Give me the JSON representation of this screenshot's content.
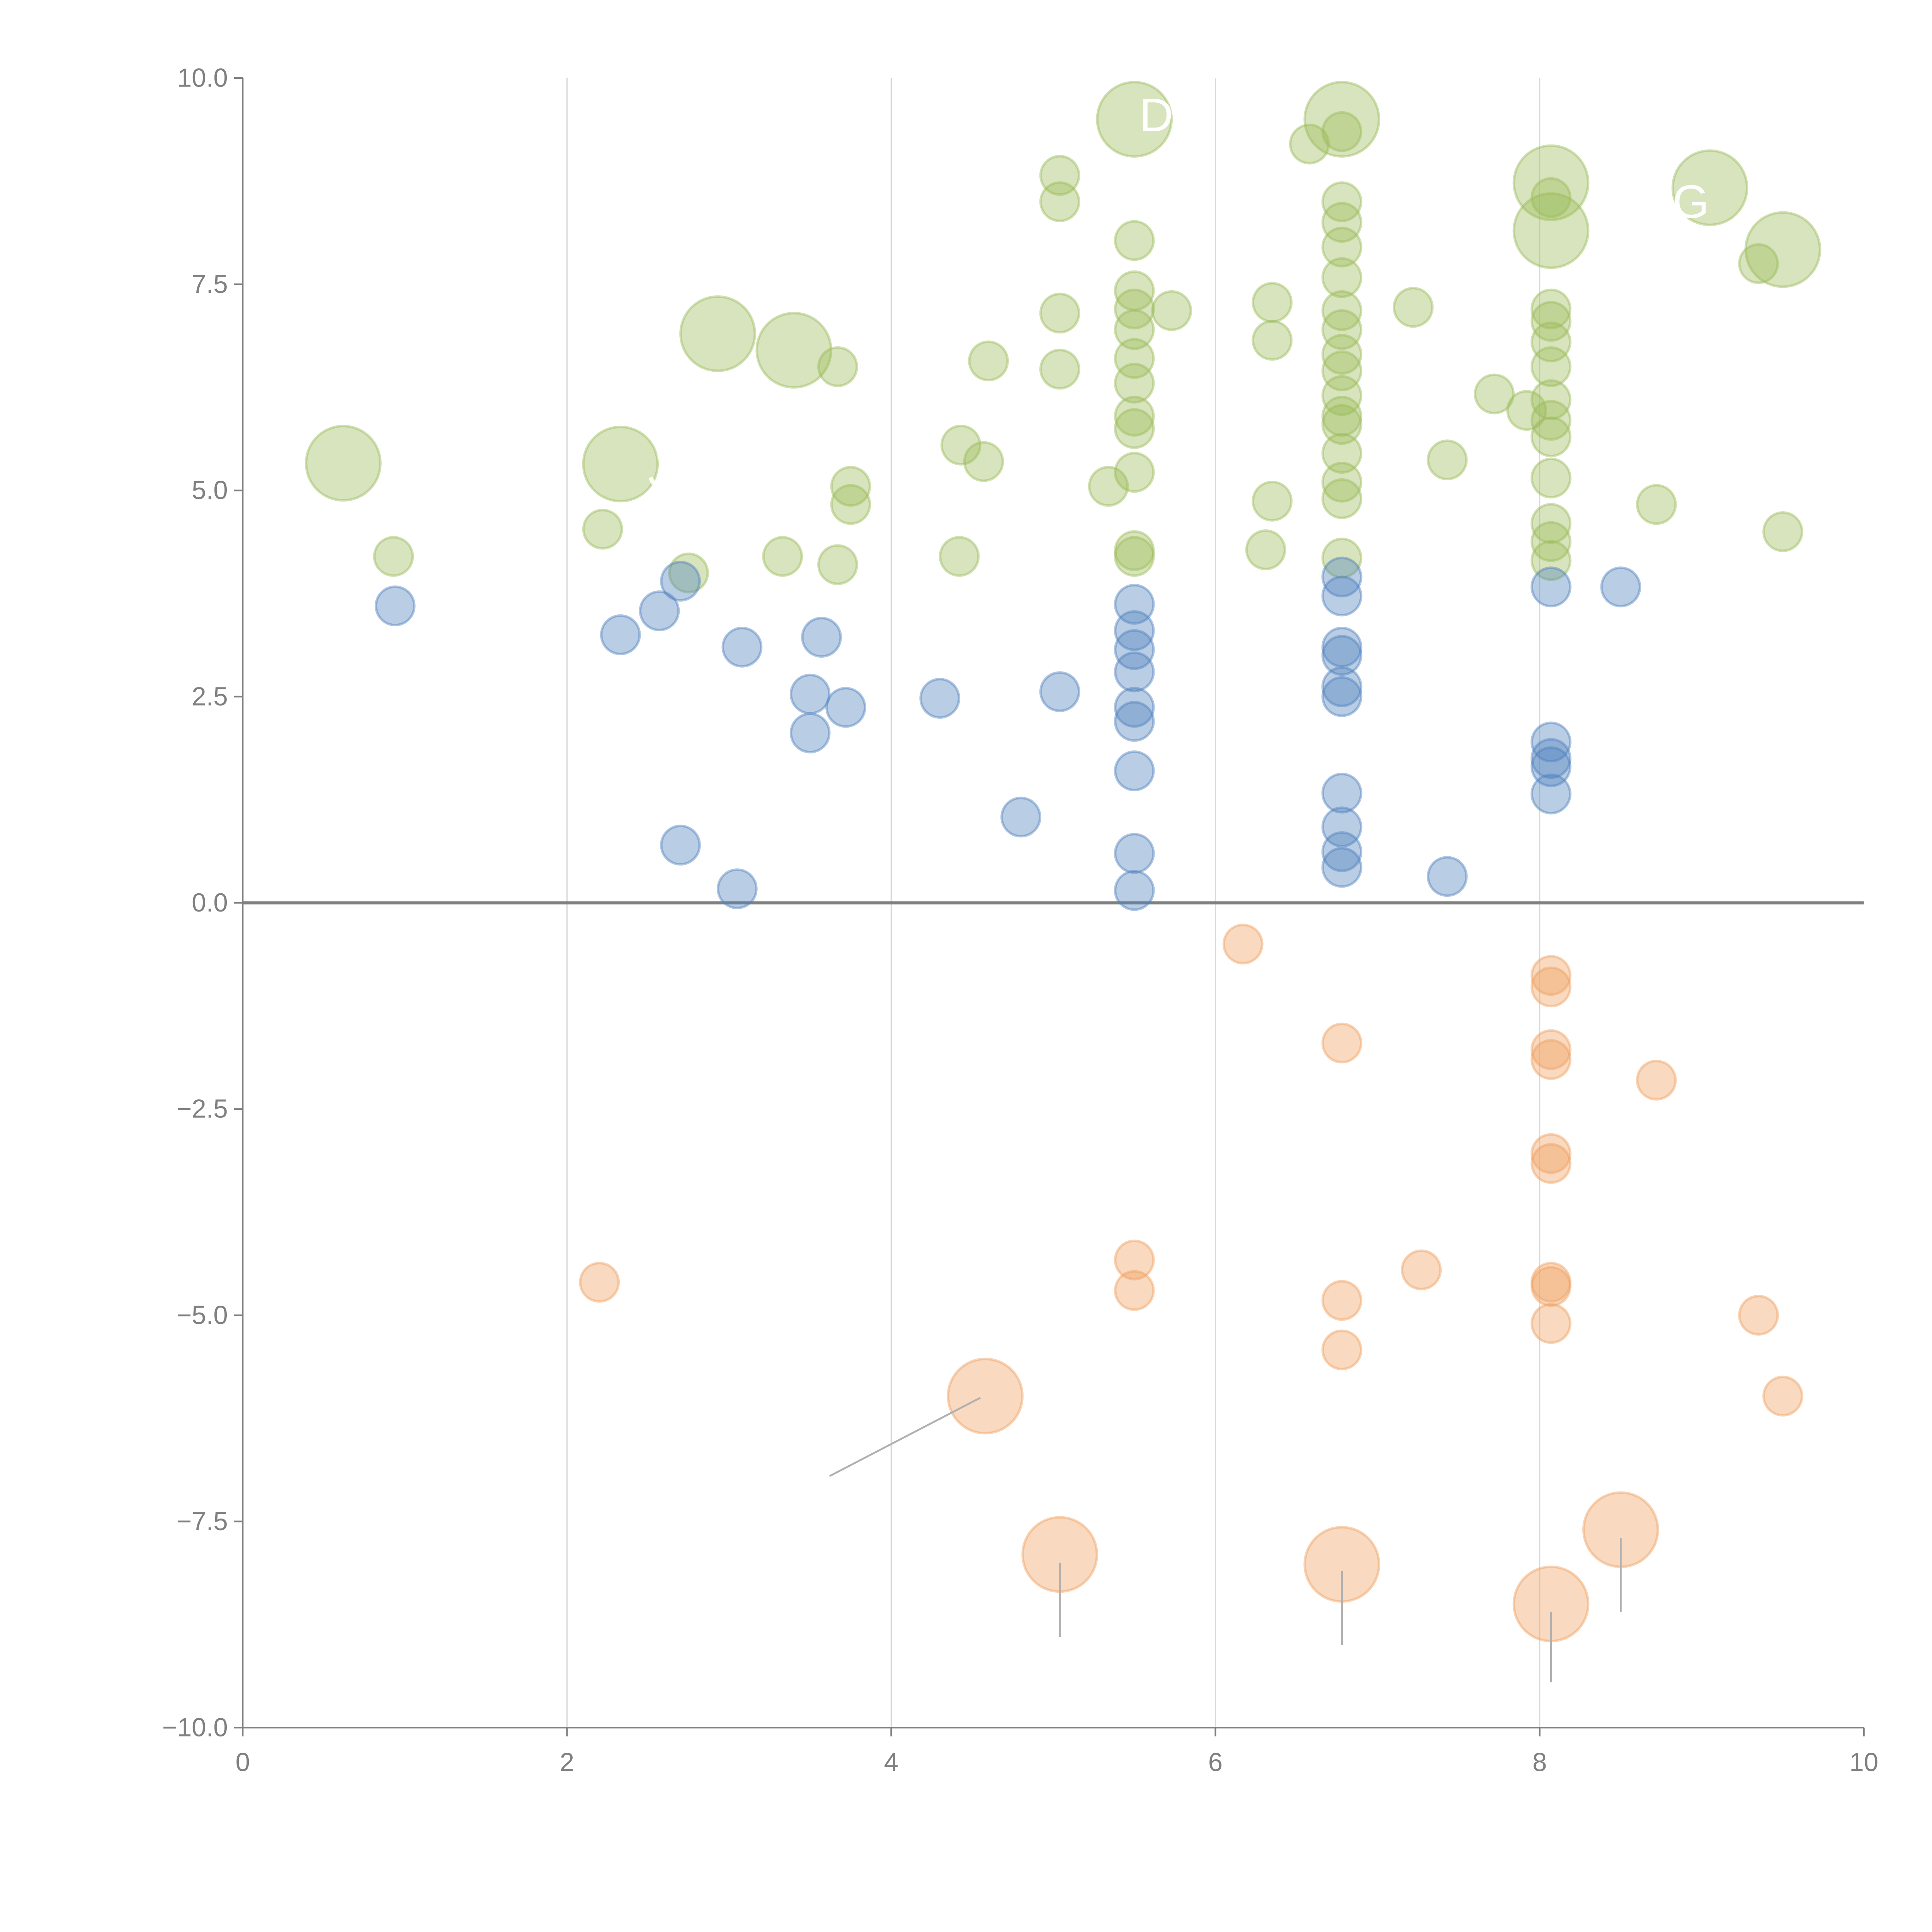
{
  "chart_data": {
    "type": "scatter",
    "title": "",
    "xlabel": "",
    "ylabel": "",
    "xlim": [
      0,
      10
    ],
    "ylim": [
      -10,
      10
    ],
    "x_ticks": [
      "0",
      "2",
      "4",
      "6",
      "8",
      "10"
    ],
    "y_ticks": [
      "10.0",
      "7.5",
      "5.0",
      "2.5",
      "0.0",
      "−2.5",
      "−5.0",
      "−7.5",
      "−10.0"
    ],
    "grid": "vertical",
    "colors": {
      "green": "#9bbb59",
      "blue": "#4f81bd",
      "orange": "#f0a060"
    },
    "series": [
      {
        "name": "green",
        "color": "#9bbb59",
        "size": "small",
        "points": [
          [
            0.93,
            4.2
          ],
          [
            2.22,
            4.53
          ],
          [
            2.75,
            4.0
          ],
          [
            3.33,
            4.2
          ],
          [
            3.67,
            4.1
          ],
          [
            3.67,
            6.5
          ],
          [
            3.75,
            4.83
          ],
          [
            3.75,
            5.05
          ],
          [
            4.43,
            5.55
          ],
          [
            4.57,
            5.35
          ],
          [
            4.6,
            6.57
          ],
          [
            4.42,
            4.2
          ],
          [
            5.04,
            8.82
          ],
          [
            5.04,
            8.5
          ],
          [
            5.04,
            7.15
          ],
          [
            5.04,
            6.47
          ],
          [
            5.34,
            5.05
          ],
          [
            5.5,
            8.03
          ],
          [
            5.5,
            7.42
          ],
          [
            5.5,
            7.2
          ],
          [
            5.5,
            6.95
          ],
          [
            5.5,
            6.6
          ],
          [
            5.5,
            6.3
          ],
          [
            5.5,
            5.9
          ],
          [
            5.5,
            5.75
          ],
          [
            5.5,
            5.22
          ],
          [
            5.5,
            4.27
          ],
          [
            5.5,
            4.2
          ],
          [
            5.73,
            7.18
          ],
          [
            6.31,
            4.28
          ],
          [
            6.35,
            4.87
          ],
          [
            6.35,
            6.82
          ],
          [
            6.35,
            7.28
          ],
          [
            6.58,
            9.2
          ],
          [
            6.78,
            9.35
          ],
          [
            6.78,
            8.5
          ],
          [
            6.78,
            8.25
          ],
          [
            6.78,
            7.95
          ],
          [
            6.78,
            7.58
          ],
          [
            6.78,
            7.18
          ],
          [
            6.78,
            6.95
          ],
          [
            6.78,
            6.65
          ],
          [
            6.78,
            6.45
          ],
          [
            6.78,
            6.15
          ],
          [
            6.78,
            5.9
          ],
          [
            6.78,
            5.8
          ],
          [
            6.78,
            5.45
          ],
          [
            6.78,
            5.1
          ],
          [
            6.78,
            4.9
          ],
          [
            6.78,
            4.18
          ],
          [
            7.22,
            7.22
          ],
          [
            7.43,
            5.37
          ],
          [
            7.72,
            6.17
          ],
          [
            7.92,
            5.97
          ],
          [
            8.07,
            8.55
          ],
          [
            8.07,
            7.2
          ],
          [
            8.07,
            7.05
          ],
          [
            8.07,
            6.8
          ],
          [
            8.07,
            6.5
          ],
          [
            8.07,
            6.1
          ],
          [
            8.07,
            5.85
          ],
          [
            8.07,
            5.65
          ],
          [
            8.07,
            5.15
          ],
          [
            8.07,
            4.6
          ],
          [
            8.07,
            4.38
          ],
          [
            8.07,
            4.15
          ],
          [
            8.72,
            4.83
          ],
          [
            9.35,
            7.75
          ],
          [
            9.5,
            4.5
          ]
        ]
      },
      {
        "name": "green-large",
        "color": "#9bbb59",
        "size": "large",
        "points": [
          [
            0.62,
            5.33
          ],
          [
            2.33,
            5.32
          ],
          [
            2.93,
            6.9
          ],
          [
            3.4,
            6.7
          ],
          [
            5.5,
            9.5
          ],
          [
            6.78,
            9.5
          ],
          [
            8.07,
            8.73
          ],
          [
            8.07,
            8.15
          ],
          [
            9.05,
            8.67
          ],
          [
            9.5,
            7.92
          ]
        ]
      },
      {
        "name": "blue",
        "color": "#4f81bd",
        "size": "small",
        "points": [
          [
            0.94,
            3.6
          ],
          [
            2.33,
            3.25
          ],
          [
            2.57,
            3.54
          ],
          [
            2.7,
            3.9
          ],
          [
            2.7,
            0.7
          ],
          [
            3.05,
            0.17
          ],
          [
            3.08,
            3.1
          ],
          [
            3.5,
            2.53
          ],
          [
            3.5,
            2.06
          ],
          [
            3.57,
            3.22
          ],
          [
            3.72,
            2.37
          ],
          [
            4.3,
            2.48
          ],
          [
            4.8,
            1.04
          ],
          [
            5.04,
            2.56
          ],
          [
            5.5,
            3.62
          ],
          [
            5.5,
            3.3
          ],
          [
            5.5,
            3.07
          ],
          [
            5.5,
            2.8
          ],
          [
            5.5,
            2.37
          ],
          [
            5.5,
            2.2
          ],
          [
            5.5,
            1.6
          ],
          [
            5.5,
            0.6
          ],
          [
            5.5,
            0.15
          ],
          [
            6.78,
            3.95
          ],
          [
            6.78,
            3.72
          ],
          [
            6.78,
            3.1
          ],
          [
            6.78,
            3.0
          ],
          [
            6.78,
            2.62
          ],
          [
            6.78,
            2.5
          ],
          [
            6.78,
            1.33
          ],
          [
            6.78,
            0.92
          ],
          [
            6.78,
            0.62
          ],
          [
            6.78,
            0.43
          ],
          [
            7.43,
            0.32
          ],
          [
            8.07,
            3.83
          ],
          [
            8.07,
            1.95
          ],
          [
            8.07,
            1.75
          ],
          [
            8.07,
            1.65
          ],
          [
            8.07,
            1.32
          ],
          [
            8.5,
            3.83
          ]
        ]
      },
      {
        "name": "orange",
        "color": "#f0a060",
        "size": "small",
        "points": [
          [
            2.2,
            -4.6
          ],
          [
            5.5,
            -4.33
          ],
          [
            5.5,
            -4.7
          ],
          [
            6.17,
            -0.5
          ],
          [
            6.78,
            -1.7
          ],
          [
            6.78,
            -4.82
          ],
          [
            6.78,
            -5.42
          ],
          [
            7.27,
            -4.45
          ],
          [
            8.07,
            -0.88
          ],
          [
            8.07,
            -1.02
          ],
          [
            8.07,
            -1.78
          ],
          [
            8.07,
            -1.9
          ],
          [
            8.07,
            -3.04
          ],
          [
            8.07,
            -3.16
          ],
          [
            8.07,
            -4.6
          ],
          [
            8.07,
            -4.65
          ],
          [
            8.07,
            -5.1
          ],
          [
            8.72,
            -2.15
          ],
          [
            9.35,
            -5.0
          ],
          [
            9.5,
            -5.98
          ]
        ]
      },
      {
        "name": "orange-large",
        "color": "#f0a060",
        "size": "large",
        "points": [
          [
            4.58,
            -5.98
          ],
          [
            5.04,
            -7.9
          ],
          [
            6.78,
            -8.02
          ],
          [
            8.07,
            -8.5
          ],
          [
            8.5,
            -7.6
          ]
        ]
      }
    ],
    "leader_lines": [
      [
        [
          4.55,
          -6.0
        ],
        [
          3.62,
          -6.95
        ]
      ],
      [
        [
          5.04,
          -8.0
        ],
        [
          5.04,
          -8.9
        ]
      ],
      [
        [
          6.78,
          -8.1
        ],
        [
          6.78,
          -9.0
        ]
      ],
      [
        [
          8.07,
          -8.6
        ],
        [
          8.07,
          -9.45
        ]
      ],
      [
        [
          8.5,
          -7.7
        ],
        [
          8.5,
          -8.6
        ]
      ]
    ],
    "annotations": [
      {
        "text": "D",
        "x": 5.53,
        "y": 9.55
      },
      {
        "text": "G",
        "x": 8.82,
        "y": 8.5
      },
      {
        "text": "J",
        "x": 2.5,
        "y": 5.25
      }
    ]
  }
}
